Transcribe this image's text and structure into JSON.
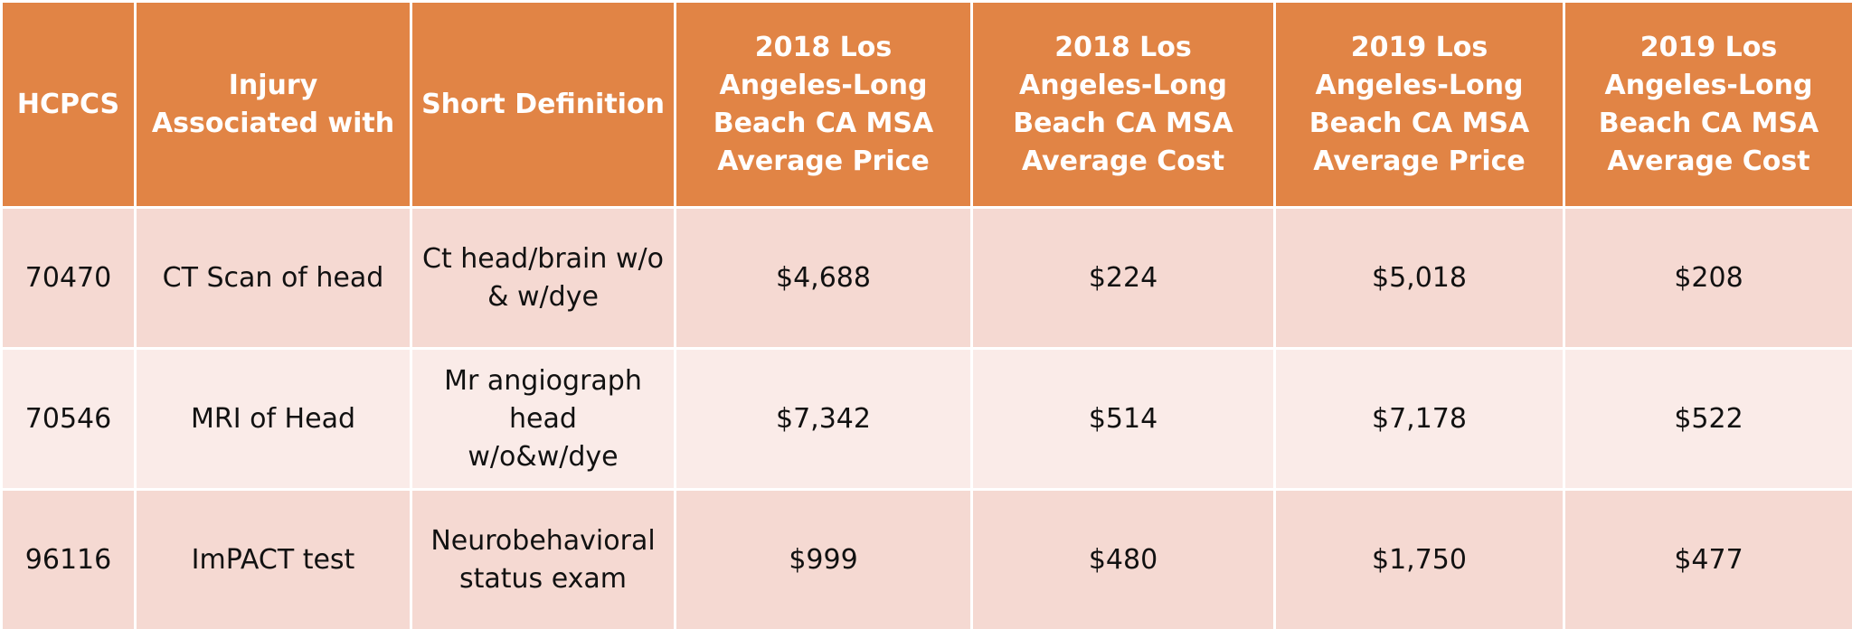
{
  "table": {
    "headers": [
      "HCPCS",
      "Injury Associated with",
      "Short Definition",
      "2018 Los Angeles-Long Beach CA MSA Average Price",
      "2018 Los Angeles-Long Beach CA MSA Average Cost",
      "2019 Los Angeles-Long Beach CA MSA Average Price",
      "2019 Los Angeles-Long Beach CA MSA Average Cost"
    ],
    "rows": [
      [
        "70470",
        "CT Scan of head",
        "Ct head/brain w/o & w/dye",
        "$4,688",
        "$224",
        "$5,018",
        "$208"
      ],
      [
        "70546",
        "MRI of Head",
        "Mr angiograph head w/o&w/dye",
        "$7,342",
        "$514",
        "$7,178",
        "$522"
      ],
      [
        "96116",
        "ImPACT test",
        "Neurobehavioral status exam",
        "$999",
        "$480",
        "$1,750",
        "$477"
      ]
    ],
    "colors": {
      "header_bg": "#E18445",
      "row_odd_bg": "#F5D9D2",
      "row_even_bg": "#FAEBE8",
      "border": "#FFFFFF"
    }
  }
}
